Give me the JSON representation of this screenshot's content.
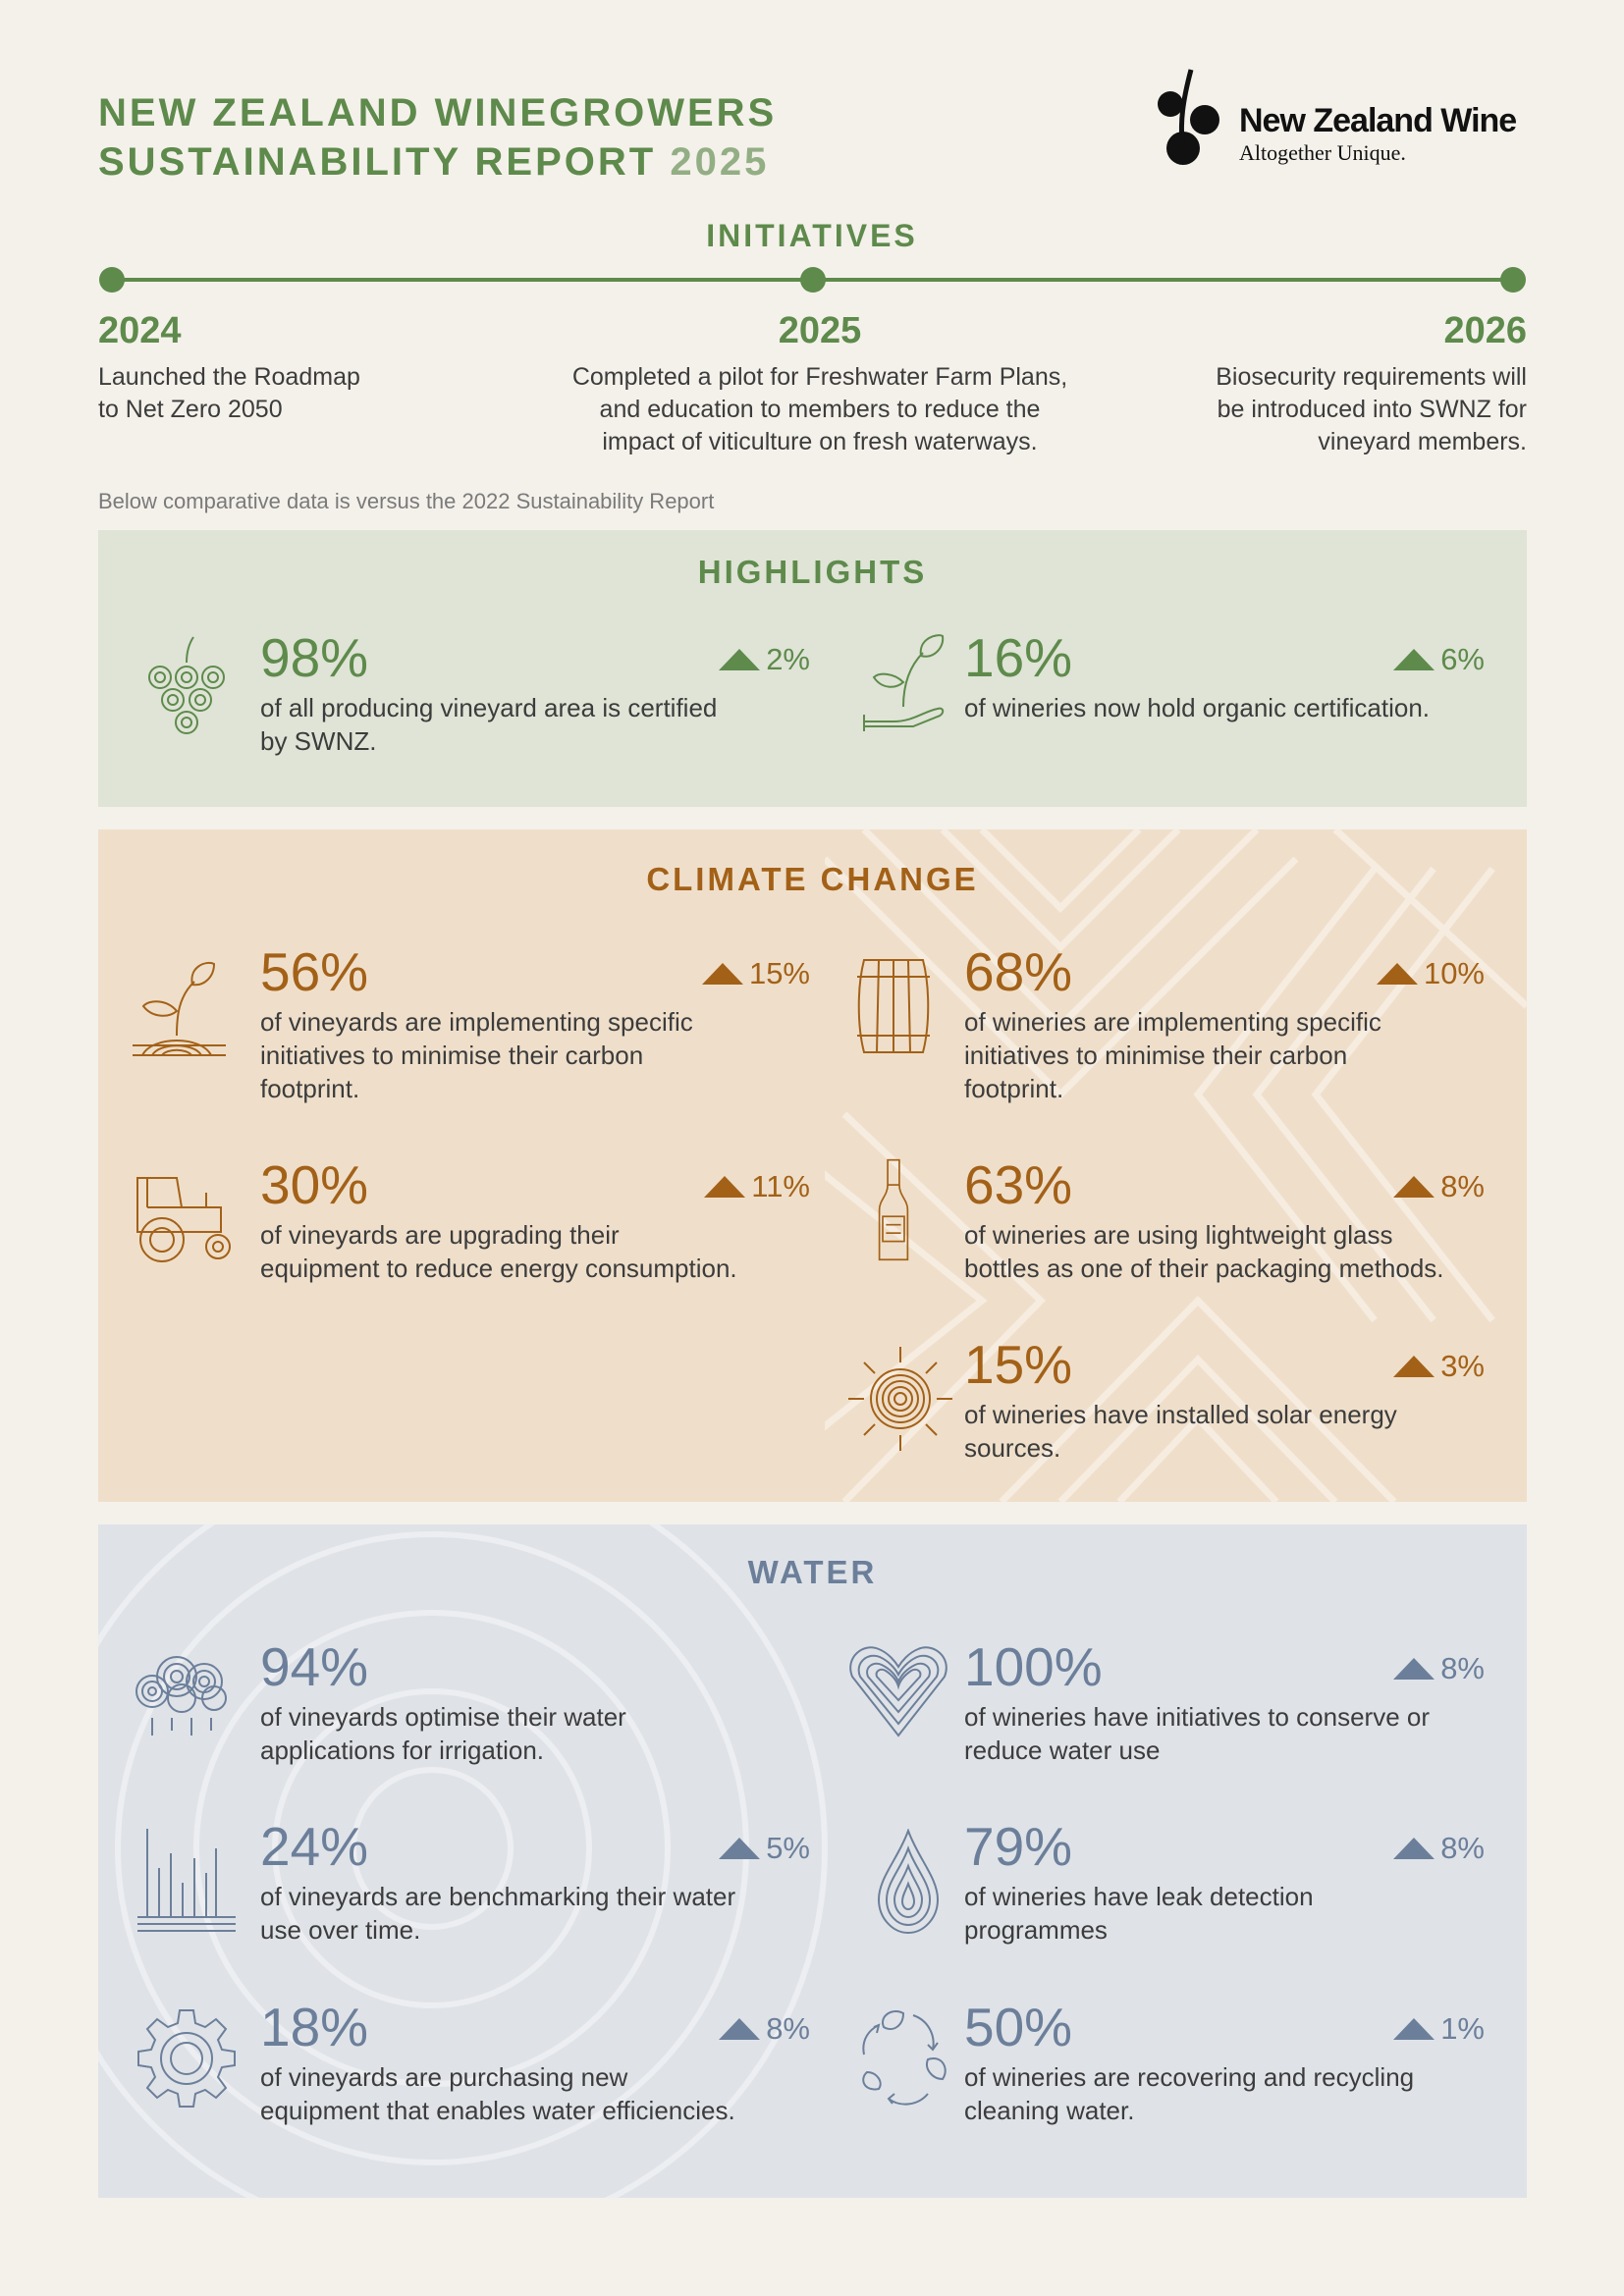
{
  "header": {
    "title_line1": "NEW ZEALAND WINEGROWERS",
    "title_line2": "SUSTAINABILITY REPORT",
    "title_year": "2025",
    "brand_name": "New Zealand Wine",
    "brand_tagline": "Altogether Unique."
  },
  "initiatives": {
    "heading": "INITIATIVES",
    "items": [
      {
        "year": "2024",
        "text_lines": [
          "Launched the Roadmap",
          "to Net Zero 2050"
        ]
      },
      {
        "year": "2025",
        "text_lines": [
          "Completed a pilot for Freshwater Farm Plans,",
          "and education to members to reduce the",
          "impact of viticulture on fresh waterways."
        ]
      },
      {
        "year": "2026",
        "text_lines": [
          "Biosecurity requirements will",
          "be introduced into SWNZ for",
          "vineyard members."
        ]
      }
    ]
  },
  "note": "Below comparative data is versus the 2022 Sustainability Report",
  "colors": {
    "green": "#5e8a4c",
    "orange": "#a36118",
    "blue": "#6c7f9a",
    "highlights_bg": "#dfe4d6",
    "climate_bg": "#efdfca",
    "water_bg": "#dfe3e8"
  },
  "highlights": {
    "heading": "HIGHLIGHTS",
    "stats": [
      {
        "value": "98%",
        "change": "2%",
        "icon": "grapes-icon",
        "text_lines": [
          "of all producing vineyard area is certified",
          "by SWNZ."
        ]
      },
      {
        "value": "16%",
        "change": "6%",
        "icon": "sprout-in-hand-icon",
        "text_lines": [
          "of wineries now hold organic certification."
        ]
      }
    ]
  },
  "climate": {
    "heading": "CLIMATE CHANGE",
    "stats": [
      {
        "value": "56%",
        "change": "15%",
        "icon": "seedling-icon",
        "text_lines": [
          "of vineyards are implementing specific",
          "initiatives to minimise their carbon",
          "footprint."
        ]
      },
      {
        "value": "68%",
        "change": "10%",
        "icon": "barrel-icon",
        "text_lines": [
          "of wineries are implementing specific",
          "initiatives to minimise their carbon",
          "footprint."
        ]
      },
      {
        "value": "30%",
        "change": "11%",
        "icon": "tractor-icon",
        "text_lines": [
          "of vineyards are upgrading their",
          "equipment to reduce energy consumption."
        ]
      },
      {
        "value": "63%",
        "change": "8%",
        "icon": "bottle-icon",
        "text_lines": [
          "of wineries are using lightweight glass",
          "bottles as one of their packaging methods."
        ]
      },
      {
        "value": "15%",
        "change": "3%",
        "icon": "sun-icon",
        "text_lines": [
          "of wineries have installed solar energy",
          "sources."
        ]
      }
    ]
  },
  "water": {
    "heading": "WATER",
    "stats": [
      {
        "value": "94%",
        "change": "",
        "icon": "rain-cloud-icon",
        "text_lines": [
          "of vineyards optimise their water",
          "applications for irrigation."
        ]
      },
      {
        "value": "100%",
        "change": "8%",
        "icon": "heart-icon",
        "text_lines": [
          "of wineries have initiatives to conserve or",
          "reduce water use"
        ]
      },
      {
        "value": "24%",
        "change": "5%",
        "icon": "bar-chart-icon",
        "text_lines": [
          "of vineyards are benchmarking their water",
          "use over time."
        ]
      },
      {
        "value": "79%",
        "change": "8%",
        "icon": "water-drop-icon",
        "text_lines": [
          "of wineries have leak detection",
          "programmes"
        ]
      },
      {
        "value": "18%",
        "change": "8%",
        "icon": "gear-icon",
        "text_lines": [
          "of vineyards are purchasing new",
          "equipment that enables water efficiencies."
        ]
      },
      {
        "value": "50%",
        "change": "1%",
        "icon": "recycle-leaves-icon",
        "text_lines": [
          "of wineries are recovering and recycling",
          "cleaning water."
        ]
      }
    ]
  }
}
